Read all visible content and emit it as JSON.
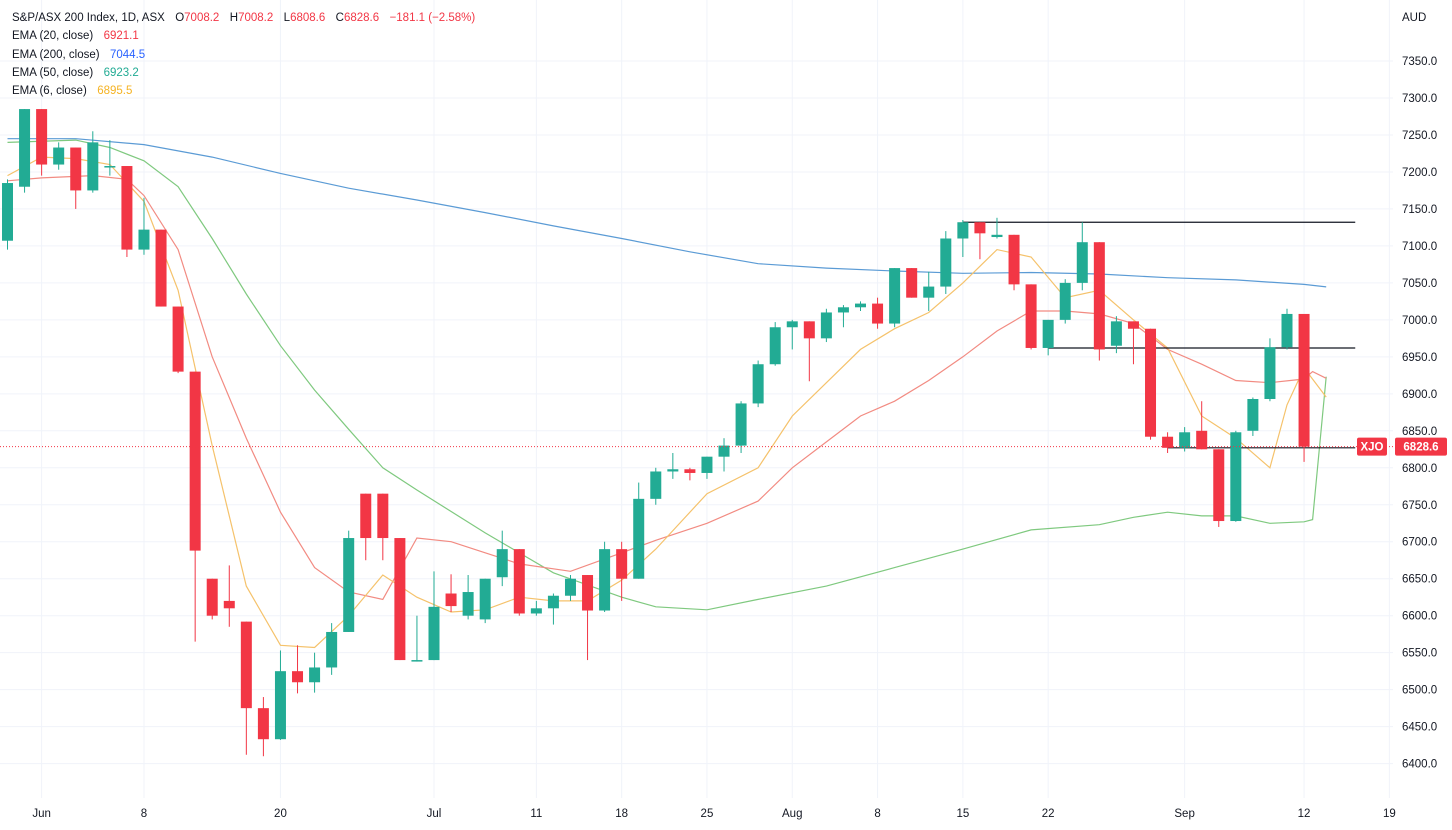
{
  "header": {
    "symbol_desc": "S&P/ASX 200 Index, 1D, ASX",
    "ohlc": [
      {
        "k": "O",
        "v": "7008.2"
      },
      {
        "k": "H",
        "v": "7008.2"
      },
      {
        "k": "L",
        "v": "6808.6"
      },
      {
        "k": "C",
        "v": "6828.6"
      },
      {
        "k": "",
        "v": "−181.1 (−2.58%)"
      }
    ],
    "indicators": [
      {
        "label": "EMA (20, close)",
        "value": "6921.1",
        "color": "#f23645"
      },
      {
        "label": "EMA (200, close)",
        "value": "7044.5",
        "color": "#2962ff"
      },
      {
        "label": "EMA (50, close)",
        "value": "6923.2",
        "color": "#22ab94"
      },
      {
        "label": "EMA (6, close)",
        "value": "6895.5",
        "color": "#f5b324"
      }
    ]
  },
  "price_axis": {
    "currency": "AUD",
    "ticks": [
      7350,
      7300,
      7250,
      7200,
      7150,
      7100,
      7050,
      7000,
      6950,
      6900,
      6850,
      6800,
      6750,
      6700,
      6650,
      6600,
      6550,
      6500,
      6450,
      6400
    ],
    "last_price_label": "6828.6",
    "symbol_label": "XJO"
  },
  "colors": {
    "up": "#22ab94",
    "down": "#f23645",
    "ema20": "#f28b82",
    "ema200": "#5b9bd5",
    "ema50": "#7fc97f",
    "ema6": "#f5c26b",
    "grid": "#f0f3fa",
    "level": "#131722"
  },
  "chart_data": {
    "type": "candlestick",
    "title": "S&P/ASX 200 Index, 1D, ASX",
    "ylim": [
      6380,
      7400
    ],
    "x_tick_labels": [
      {
        "label": "Jun",
        "bar": 2
      },
      {
        "label": "8",
        "bar": 8
      },
      {
        "label": "20",
        "bar": 16
      },
      {
        "label": "Jul",
        "bar": 25
      },
      {
        "label": "11",
        "bar": 31
      },
      {
        "label": "18",
        "bar": 36
      },
      {
        "label": "25",
        "bar": 41
      },
      {
        "label": "Aug",
        "bar": 46
      },
      {
        "label": "8",
        "bar": 51
      },
      {
        "label": "15",
        "bar": 56
      },
      {
        "label": "22",
        "bar": 61
      },
      {
        "label": "Sep",
        "bar": 69
      },
      {
        "label": "12",
        "bar": 76
      },
      {
        "label": "19",
        "bar": 81
      }
    ],
    "candles": [
      [
        7107,
        7190,
        7095,
        7185
      ],
      [
        7180,
        7285,
        7172,
        7285
      ],
      [
        7285,
        7285,
        7195,
        7210
      ],
      [
        7210,
        7240,
        7203,
        7233
      ],
      [
        7233,
        7233,
        7150,
        7175
      ],
      [
        7175,
        7255,
        7172,
        7240
      ],
      [
        7208,
        7243,
        7195,
        7208
      ],
      [
        7208,
        7208,
        7085,
        7095
      ],
      [
        7095,
        7165,
        7088,
        7122
      ],
      [
        7122,
        7122,
        7018,
        7018
      ],
      [
        7018,
        7018,
        6928,
        6930
      ],
      [
        6930,
        6930,
        6565,
        6688
      ],
      [
        6650,
        6650,
        6595,
        6600
      ],
      [
        6620,
        6668,
        6585,
        6610
      ],
      [
        6592,
        6592,
        6412,
        6475
      ],
      [
        6475,
        6490,
        6410,
        6433
      ],
      [
        6433,
        6553,
        6432,
        6525
      ],
      [
        6525,
        6560,
        6495,
        6510
      ],
      [
        6510,
        6550,
        6496,
        6530
      ],
      [
        6530,
        6590,
        6520,
        6578
      ],
      [
        6578,
        6715,
        6578,
        6705
      ],
      [
        6765,
        6765,
        6675,
        6705
      ],
      [
        6765,
        6765,
        6675,
        6705
      ],
      [
        6705,
        6705,
        6540,
        6540
      ],
      [
        6540,
        6600,
        6538,
        6540
      ],
      [
        6540,
        6660,
        6540,
        6612
      ],
      [
        6630,
        6656,
        6605,
        6613
      ],
      [
        6600,
        6655,
        6595,
        6632
      ],
      [
        6595,
        6650,
        6590,
        6650
      ],
      [
        6652,
        6715,
        6640,
        6690
      ],
      [
        6690,
        6690,
        6600,
        6603
      ],
      [
        6603,
        6620,
        6600,
        6610
      ],
      [
        6610,
        6630,
        6588,
        6627
      ],
      [
        6627,
        6655,
        6620,
        6650
      ],
      [
        6655,
        6655,
        6540,
        6607
      ],
      [
        6607,
        6700,
        6605,
        6690
      ],
      [
        6690,
        6700,
        6620,
        6650
      ],
      [
        6650,
        6780,
        6650,
        6758
      ],
      [
        6758,
        6800,
        6750,
        6795
      ],
      [
        6795,
        6820,
        6785,
        6798
      ],
      [
        6798,
        6800,
        6783,
        6793
      ],
      [
        6793,
        6815,
        6785,
        6815
      ],
      [
        6815,
        6840,
        6795,
        6830
      ],
      [
        6830,
        6890,
        6820,
        6887
      ],
      [
        6887,
        6945,
        6882,
        6940
      ],
      [
        6940,
        6997,
        6938,
        6990
      ],
      [
        6990,
        7000,
        6960,
        6998
      ],
      [
        6998,
        6998,
        6917,
        6975
      ],
      [
        6975,
        7015,
        6970,
        7010
      ],
      [
        7010,
        7020,
        6990,
        7017
      ],
      [
        7017,
        7025,
        7012,
        7022
      ],
      [
        7022,
        7030,
        6988,
        6995
      ],
      [
        6995,
        7070,
        6990,
        7070
      ],
      [
        7070,
        7070,
        7030,
        7030
      ],
      [
        7030,
        7065,
        7012,
        7045
      ],
      [
        7045,
        7120,
        7035,
        7110
      ],
      [
        7110,
        7135,
        7085,
        7132
      ],
      [
        7132,
        7132,
        7082,
        7117
      ],
      [
        7112,
        7138,
        7110,
        7115
      ],
      [
        7115,
        7115,
        7040,
        7048
      ],
      [
        7048,
        7048,
        6960,
        6962
      ],
      [
        6962,
        7000,
        6952,
        7000
      ],
      [
        7000,
        7055,
        6995,
        7050
      ],
      [
        7050,
        7132,
        7040,
        7105
      ],
      [
        7105,
        7105,
        6945,
        6960
      ],
      [
        6965,
        7005,
        6955,
        6998
      ],
      [
        6998,
        6998,
        6940,
        6988
      ],
      [
        6988,
        6988,
        6838,
        6842
      ],
      [
        6842,
        6848,
        6820,
        6827
      ],
      [
        6827,
        6855,
        6822,
        6848
      ],
      [
        6850,
        6890,
        6825,
        6825
      ],
      [
        6825,
        6825,
        6720,
        6728
      ],
      [
        6728,
        6850,
        6727,
        6848
      ],
      [
        6850,
        6895,
        6843,
        6893
      ],
      [
        6893,
        6975,
        6890,
        6963
      ],
      [
        6963,
        7015,
        6960,
        7008
      ],
      [
        7008,
        7008,
        6808,
        6828.6
      ]
    ],
    "ema20": [
      [
        0,
        7188
      ],
      [
        2,
        7192
      ],
      [
        5,
        7195
      ],
      [
        7,
        7190
      ],
      [
        8,
        7168
      ],
      [
        10,
        7095
      ],
      [
        12,
        6950
      ],
      [
        14,
        6840
      ],
      [
        16,
        6740
      ],
      [
        18,
        6665
      ],
      [
        20,
        6632
      ],
      [
        22,
        6622
      ],
      [
        24,
        6705
      ],
      [
        26,
        6700
      ],
      [
        28,
        6685
      ],
      [
        30,
        6670
      ],
      [
        33,
        6660
      ],
      [
        36,
        6685
      ],
      [
        38,
        6702
      ],
      [
        41,
        6725
      ],
      [
        44,
        6755
      ],
      [
        46,
        6800
      ],
      [
        48,
        6835
      ],
      [
        50,
        6870
      ],
      [
        52,
        6890
      ],
      [
        54,
        6918
      ],
      [
        56,
        6950
      ],
      [
        58,
        6985
      ],
      [
        60,
        7012
      ],
      [
        62,
        7012
      ],
      [
        64,
        7008
      ],
      [
        66,
        6995
      ],
      [
        68,
        6960
      ],
      [
        70,
        6940
      ],
      [
        72,
        6918
      ],
      [
        74,
        6915
      ],
      [
        76,
        6920
      ],
      [
        76.5,
        6930
      ],
      [
        77.3,
        6921
      ]
    ],
    "ema200": [
      [
        0,
        7245
      ],
      [
        4,
        7245
      ],
      [
        8,
        7237
      ],
      [
        12,
        7220
      ],
      [
        16,
        7198
      ],
      [
        20,
        7178
      ],
      [
        24,
        7162
      ],
      [
        28,
        7145
      ],
      [
        32,
        7127
      ],
      [
        36,
        7110
      ],
      [
        40,
        7092
      ],
      [
        44,
        7076
      ],
      [
        48,
        7070
      ],
      [
        52,
        7066
      ],
      [
        56,
        7063
      ],
      [
        60,
        7064
      ],
      [
        64,
        7062
      ],
      [
        68,
        7057
      ],
      [
        72,
        7054
      ],
      [
        76,
        7048
      ],
      [
        77.3,
        7044.5
      ]
    ],
    "ema50": [
      [
        0,
        7240
      ],
      [
        4,
        7243
      ],
      [
        6,
        7233
      ],
      [
        8,
        7215
      ],
      [
        10,
        7180
      ],
      [
        12,
        7110
      ],
      [
        14,
        7035
      ],
      [
        16,
        6965
      ],
      [
        18,
        6905
      ],
      [
        20,
        6852
      ],
      [
        22,
        6800
      ],
      [
        24,
        6770
      ],
      [
        28,
        6712
      ],
      [
        32,
        6658
      ],
      [
        36,
        6625
      ],
      [
        38,
        6612
      ],
      [
        41,
        6608
      ],
      [
        44,
        6622
      ],
      [
        48,
        6640
      ],
      [
        52,
        6665
      ],
      [
        56,
        6690
      ],
      [
        60,
        6716
      ],
      [
        64,
        6723
      ],
      [
        66,
        6733
      ],
      [
        68,
        6740
      ],
      [
        70,
        6735
      ],
      [
        72,
        6735
      ],
      [
        74,
        6725
      ],
      [
        76,
        6727
      ],
      [
        76.5,
        6730
      ],
      [
        77.3,
        6923.2
      ]
    ],
    "ema6": [
      [
        0,
        7195
      ],
      [
        2,
        7220
      ],
      [
        4,
        7218
      ],
      [
        6,
        7210
      ],
      [
        8,
        7160
      ],
      [
        10,
        7040
      ],
      [
        12,
        6830
      ],
      [
        14,
        6640
      ],
      [
        16,
        6560
      ],
      [
        18,
        6557
      ],
      [
        20,
        6600
      ],
      [
        22,
        6655
      ],
      [
        24,
        6625
      ],
      [
        26,
        6605
      ],
      [
        28,
        6608
      ],
      [
        30,
        6625
      ],
      [
        32,
        6620
      ],
      [
        34,
        6620
      ],
      [
        36,
        6648
      ],
      [
        38,
        6690
      ],
      [
        41,
        6765
      ],
      [
        44,
        6800
      ],
      [
        46,
        6870
      ],
      [
        48,
        6915
      ],
      [
        50,
        6960
      ],
      [
        52,
        6988
      ],
      [
        54,
        7010
      ],
      [
        56,
        7050
      ],
      [
        58,
        7095
      ],
      [
        60,
        7085
      ],
      [
        62,
        7030
      ],
      [
        64,
        7040
      ],
      [
        66,
        7000
      ],
      [
        68,
        6962
      ],
      [
        70,
        6870
      ],
      [
        72,
        6840
      ],
      [
        74,
        6800
      ],
      [
        75,
        6885
      ],
      [
        76,
        6935
      ],
      [
        77.3,
        6895.5
      ]
    ],
    "levels": [
      {
        "price": 7132,
        "from": 56,
        "to": 79
      },
      {
        "price": 6962,
        "from": 61,
        "to": 79
      },
      {
        "price": 6827,
        "from": 68,
        "to": 79
      }
    ]
  }
}
